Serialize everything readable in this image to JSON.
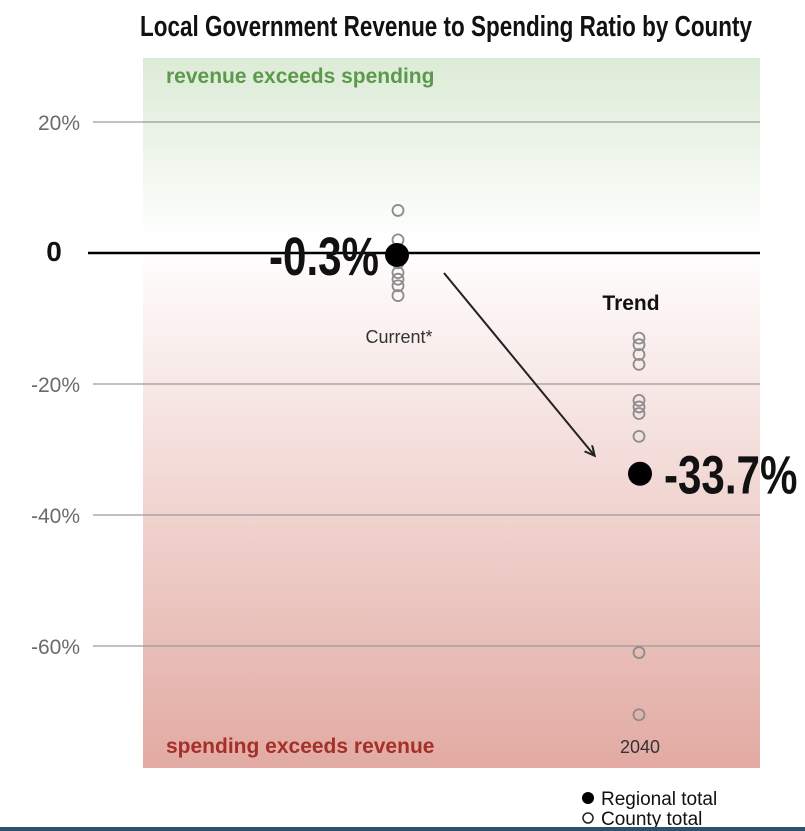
{
  "colors": {
    "background_top": "#dcebd6",
    "background_mid": "#ffffff",
    "background_bottom": "#e2aaa2",
    "positive_label": "#5b9a4a",
    "negative_label": "#a3302a",
    "gridline": "#9a9a9a",
    "zero_line": "#000000",
    "regional_marker": "#000000",
    "county_marker": "#8c8c8c",
    "bottom_bar": "#2f4f6f"
  },
  "chart_data": {
    "type": "scatter",
    "title": "Local Government Revenue to Spending Ratio by County",
    "region_labels": {
      "top": "revenue exceeds spending",
      "bottom": "spending exceeds revenue"
    },
    "ylim": [
      -78,
      30
    ],
    "y_ticks": [
      {
        "value": 20,
        "label": "20%"
      },
      {
        "value": 0,
        "label": "0"
      },
      {
        "value": -20,
        "label": "-20%"
      },
      {
        "value": -40,
        "label": "-40%"
      },
      {
        "value": -60,
        "label": "-60%"
      }
    ],
    "groups": [
      {
        "label": "Current*",
        "header": "",
        "regional_total": -0.3,
        "regional_label": "-0.3%",
        "county_values": [
          6.5,
          2,
          0.5,
          -0.5,
          -1.5,
          -3,
          -4,
          -5,
          -6.5
        ]
      },
      {
        "label": "2040",
        "header": "Trend",
        "regional_total": -33.7,
        "regional_label": "-33.7%",
        "county_values": [
          -13,
          -14,
          -15.5,
          -17,
          -22.5,
          -23.5,
          -24.5,
          -28,
          -61,
          -70.5
        ]
      }
    ],
    "legend": [
      {
        "marker": "filled",
        "label": "Regional total"
      },
      {
        "marker": "open",
        "label": "County total"
      }
    ],
    "legend_position": "bottom-right",
    "grid": true
  }
}
